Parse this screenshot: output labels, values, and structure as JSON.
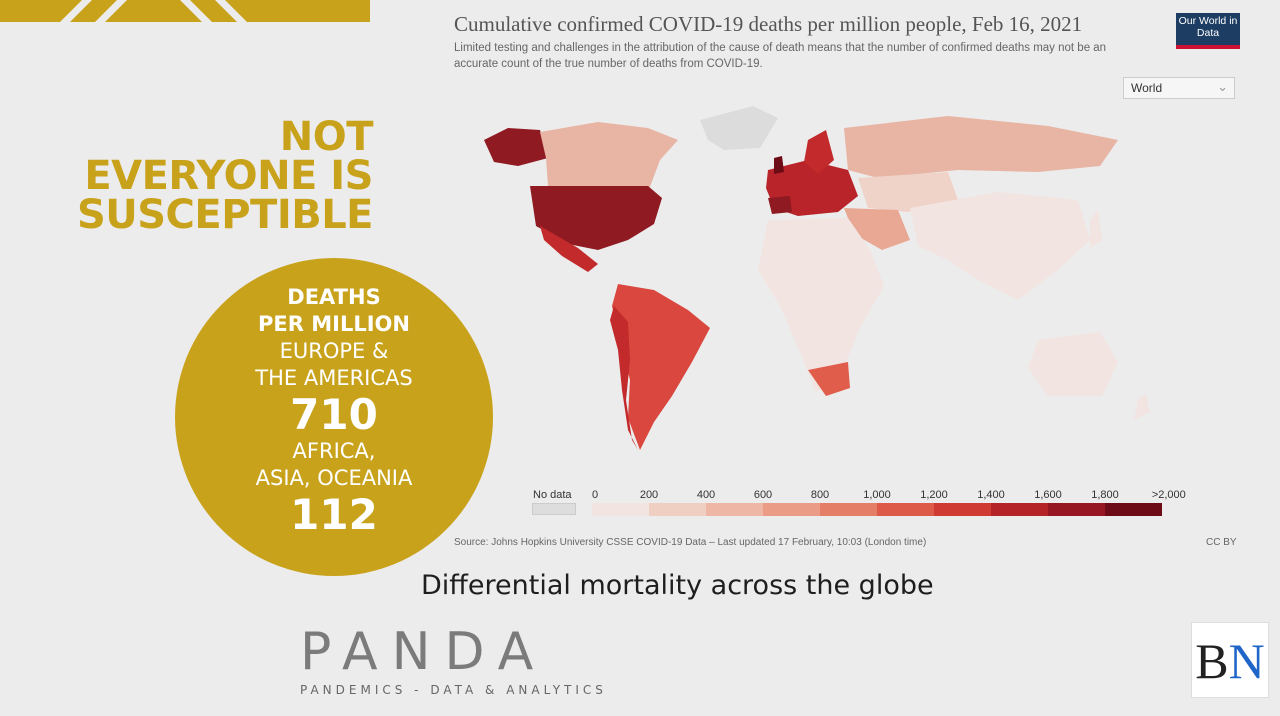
{
  "slide": {
    "headline": [
      "NOT",
      "EVERYONE IS",
      "SUSCEPTIBLE"
    ],
    "circle": {
      "line1": "DEATHS",
      "line2": "PER MILLION",
      "line3": "EUROPE &",
      "line4": "THE AMERICAS",
      "value1": "710",
      "line5": "AFRICA,",
      "line6": "ASIA, OCEANIA",
      "value2": "112"
    },
    "caption": "Differential mortality across the globe",
    "brand": "PANDA",
    "brand_sub": "PANDEMICS - DATA & ANALYTICS",
    "bn_logo": {
      "b": "B",
      "n": "N"
    },
    "accent_color": "#c9a21c"
  },
  "owid": {
    "title": "Cumulative confirmed COVID-19 deaths per million people, Feb 16, 2021",
    "subtitle": "Limited testing and challenges in the attribution of the cause of death means that the number of confirmed deaths may not be an accurate count of the true number of deaths from COVID-19.",
    "logo": "Our World in Data",
    "region_select": "World",
    "legend": {
      "no_data": "No data",
      "ticks": [
        "0",
        "200",
        "400",
        "600",
        "800",
        "1,000",
        "1,200",
        "1,400",
        "1,600",
        "1,800",
        ">2,000"
      ],
      "colors": [
        "#f2e4e0",
        "#f0cfc3",
        "#eeb7a5",
        "#eb9c86",
        "#e57e66",
        "#dd5a48",
        "#cf3a33",
        "#b42328",
        "#961722",
        "#6d0c17"
      ]
    },
    "source": "Source: Johns Hopkins University CSSE COVID-19 Data – Last updated 17 February, 10:03 (London time)",
    "license": "CC BY"
  }
}
